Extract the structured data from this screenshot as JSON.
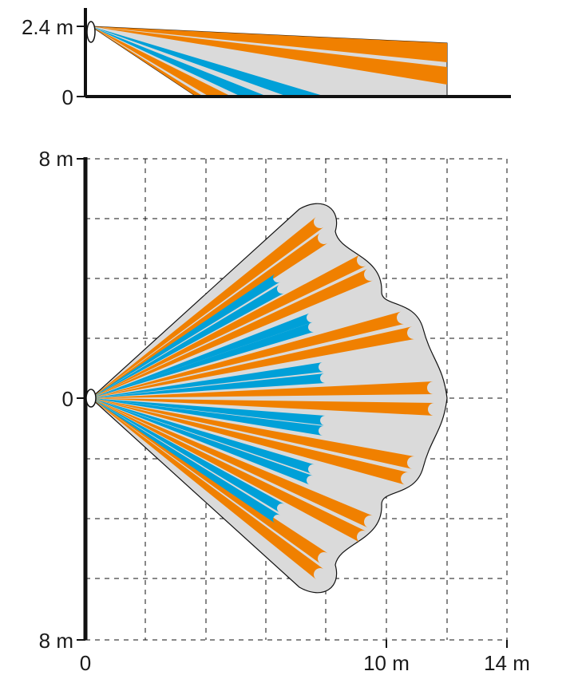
{
  "side_view": {
    "height_label": "2.4 m",
    "floor_label": "0"
  },
  "top_view": {
    "top_label": "8 m",
    "center_label": "0",
    "bottom_label": "8 m",
    "x_origin_label": "0",
    "x_mid_label": "10 m",
    "x_max_label": "14 m"
  },
  "colors": {
    "far_zone": "#F08000",
    "near_zone": "#00A0D8",
    "coverage": "#DADADA",
    "separator": "#F5E6D3",
    "axis": "#111111",
    "grid": "#111111"
  }
}
